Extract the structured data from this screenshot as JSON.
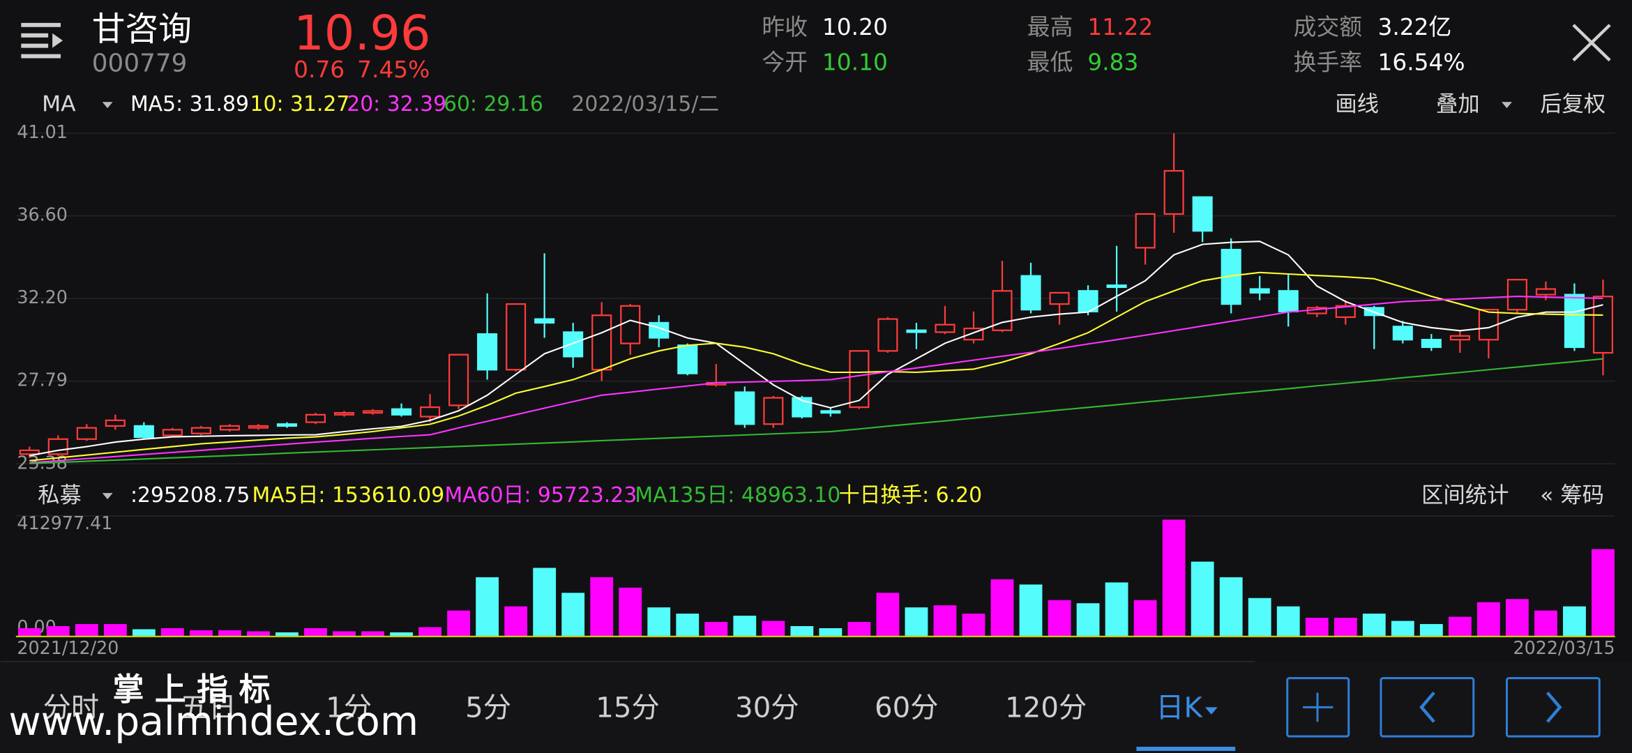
{
  "header": {
    "name": "甘咨询",
    "code": "000779",
    "price": "10.96",
    "change": "0.76",
    "change_pct": "7.45%"
  },
  "quote": [
    {
      "label": "昨收",
      "value": "10.20"
    },
    {
      "label": "今开",
      "value": "10.10"
    },
    {
      "label": "最高",
      "value": "11.22"
    },
    {
      "label": "最低",
      "value": "9.83"
    },
    {
      "label": "成交额",
      "value": "3.22亿"
    },
    {
      "label": "换手率",
      "value": "16.54%"
    }
  ],
  "price_bar": {
    "indicator": "MA",
    "legend": [
      "MA5: 31.89",
      "10: 31.27",
      "20: 32.39",
      "60: 29.16"
    ],
    "date": "2022/03/15/二",
    "tools": [
      "画线",
      "叠加",
      "后复权"
    ]
  },
  "volume_bar": {
    "indicator": "私募",
    "legend": [
      ":295208.75",
      "MA5日: 153610.09",
      "MA60日: 95723.23",
      "MA135日: 48963.10",
      "十日换手: 6.20"
    ],
    "tools": [
      "区间统计",
      "« 筹码"
    ]
  },
  "dates": [
    "2021/12/20",
    "2022/03/15"
  ],
  "tabs": [
    "分时",
    "五日",
    "1分",
    "5分",
    "15分",
    "30分",
    "60分",
    "120分",
    "日K"
  ],
  "watermark": [
    "掌 上 指 标",
    "www.palmindex.com"
  ],
  "chart_data": [
    {
      "type": "candlestick",
      "up_color": "#ff3b3b",
      "down_color": "#54fcfc",
      "ylim": [
        23.38,
        41.01
      ],
      "yticks": [
        41.01,
        {
          "value": 36.6,
          "label": "36.60"
        },
        {
          "value": 32.2,
          "label": "32.20"
        },
        27.79,
        23.38
      ],
      "grid": true,
      "open": [
        23.9,
        23.9,
        24.7,
        25.4,
        25.4,
        24.9,
        25.0,
        25.2,
        25.3,
        25.5,
        25.6,
        26.0,
        26.1,
        26.3,
        25.9,
        26.5,
        30.3,
        28.4,
        31.1,
        30.4,
        28.4,
        29.8,
        30.9,
        29.7,
        27.6,
        27.2,
        25.5,
        26.9,
        26.2,
        26.4,
        29.4,
        30.5,
        30.4,
        30.0,
        30.5,
        33.4,
        31.9,
        32.6,
        32.9,
        34.9,
        36.7,
        37.6,
        34.8,
        32.7,
        32.6,
        31.4,
        31.2,
        31.7,
        30.7,
        30.0,
        30.0,
        30.0,
        31.6,
        32.4,
        32.4,
        29.3
      ],
      "high": [
        24.3,
        24.9,
        25.5,
        26.0,
        25.6,
        25.3,
        25.4,
        25.5,
        25.5,
        25.6,
        26.1,
        26.2,
        26.3,
        26.6,
        27.1,
        29.2,
        32.47,
        31.9,
        34.6,
        30.9,
        32.0,
        31.9,
        31.3,
        29.8,
        28.7,
        27.5,
        27.0,
        27.0,
        26.4,
        29.4,
        31.2,
        30.9,
        31.8,
        31.5,
        34.2,
        34.1,
        32.5,
        32.9,
        35.0,
        36.7,
        41.0,
        37.6,
        35.4,
        33.4,
        33.5,
        31.8,
        32.1,
        31.8,
        31.0,
        30.3,
        30.5,
        31.6,
        33.2,
        33.1,
        33.0,
        33.2
      ],
      "low": [
        23.7,
        23.8,
        24.6,
        25.2,
        24.7,
        24.8,
        24.9,
        25.1,
        25.2,
        25.3,
        25.5,
        25.9,
        26.0,
        25.9,
        25.6,
        26.3,
        27.87,
        28.3,
        30.1,
        28.5,
        27.8,
        29.2,
        29.6,
        28.1,
        27.5,
        25.3,
        25.3,
        25.8,
        25.9,
        26.3,
        29.3,
        29.5,
        30.3,
        29.8,
        30.4,
        31.4,
        30.8,
        31.3,
        31.5,
        34.0,
        35.7,
        35.2,
        31.4,
        32.1,
        30.7,
        31.2,
        30.8,
        29.5,
        29.8,
        29.4,
        29.3,
        29.0,
        31.4,
        32.1,
        29.4,
        28.1
      ],
      "close": [
        24.1,
        24.7,
        25.3,
        25.7,
        24.8,
        25.2,
        25.3,
        25.4,
        25.4,
        25.4,
        26.0,
        26.1,
        26.2,
        26.0,
        26.4,
        29.2,
        28.4,
        31.9,
        30.9,
        29.1,
        31.3,
        31.8,
        30.1,
        28.2,
        27.7,
        25.5,
        26.9,
        25.9,
        26.1,
        29.4,
        31.1,
        30.4,
        30.8,
        30.6,
        32.6,
        31.6,
        32.5,
        31.5,
        32.8,
        36.7,
        39.0,
        35.8,
        31.9,
        32.5,
        31.5,
        31.7,
        31.8,
        31.3,
        30.0,
        29.6,
        30.2,
        31.6,
        33.2,
        32.7,
        29.6,
        32.3
      ],
      "lines": [
        {
          "color": "#ffffff",
          "values": [
            23.82,
            24.1,
            24.3,
            24.54,
            24.7,
            24.82,
            24.85,
            24.88,
            24.9,
            24.92,
            24.93,
            25.1,
            25.25,
            25.38,
            25.7,
            26.21,
            27.04,
            28.15,
            29.25,
            29.81,
            30.37,
            31.03,
            30.64,
            30.09,
            29.81,
            28.7,
            27.59,
            26.76,
            26.37,
            26.76,
            28.15,
            28.98,
            29.81,
            30.37,
            30.92,
            31.2,
            31.36,
            31.47,
            32.31,
            33.14,
            34.52,
            35.08,
            35.19,
            35.24,
            34.52,
            32.86,
            32.03,
            31.47,
            30.92,
            30.64,
            30.48,
            30.64,
            31.2,
            31.47,
            31.47,
            31.86
          ]
        },
        {
          "color": "#ffff33",
          "values": [
            23.55,
            23.7,
            23.85,
            24.0,
            24.15,
            24.3,
            24.45,
            24.55,
            24.65,
            24.75,
            24.82,
            24.95,
            25.1,
            25.3,
            25.49,
            25.93,
            26.5,
            27.15,
            27.5,
            27.87,
            28.4,
            28.98,
            29.4,
            29.7,
            29.81,
            29.6,
            29.25,
            28.7,
            28.26,
            28.26,
            28.3,
            28.26,
            28.35,
            28.43,
            28.8,
            29.25,
            29.8,
            30.37,
            31.2,
            32.03,
            32.6,
            33.14,
            33.4,
            33.58,
            33.5,
            33.42,
            33.35,
            33.25,
            32.8,
            32.31,
            31.9,
            31.47,
            31.4,
            31.36,
            31.33,
            31.31
          ]
        },
        {
          "color": "#ff33ff",
          "values": [
            23.44,
            23.55,
            23.66,
            23.77,
            23.88,
            23.99,
            24.1,
            24.21,
            24.32,
            24.43,
            24.54,
            24.64,
            24.74,
            24.84,
            24.93,
            25.3,
            25.65,
            26.0,
            26.35,
            26.7,
            27.04,
            27.2,
            27.37,
            27.53,
            27.7,
            27.74,
            27.78,
            27.82,
            27.87,
            28.08,
            28.29,
            28.49,
            28.7,
            28.91,
            29.12,
            29.32,
            29.53,
            29.77,
            30.0,
            30.24,
            30.48,
            30.73,
            30.98,
            31.22,
            31.47,
            31.61,
            31.75,
            31.89,
            32.03,
            32.1,
            32.17,
            32.24,
            32.31,
            32.27,
            32.24,
            32.2
          ]
        },
        {
          "color": "#33bb33",
          "values": [
            23.4,
            23.46,
            23.52,
            23.58,
            23.64,
            23.7,
            23.76,
            23.82,
            23.88,
            23.95,
            24.01,
            24.07,
            24.13,
            24.19,
            24.25,
            24.31,
            24.37,
            24.43,
            24.49,
            24.55,
            24.62,
            24.68,
            24.74,
            24.8,
            24.86,
            24.92,
            24.98,
            25.04,
            25.1,
            25.24,
            25.39,
            25.53,
            25.67,
            25.82,
            25.96,
            26.1,
            26.25,
            26.39,
            26.53,
            26.68,
            26.82,
            26.96,
            27.11,
            27.25,
            27.39,
            27.54,
            27.68,
            27.82,
            27.97,
            28.11,
            28.25,
            28.4,
            28.54,
            28.69,
            28.83,
            28.98
          ]
        }
      ]
    },
    {
      "type": "bar",
      "up_color": "#ff00ff",
      "down_color": "#54fcfc",
      "ylim": [
        0,
        412977.41
      ],
      "yticks": [
        412977.41,
        {
          "value": 0,
          "label": "0.00"
        }
      ],
      "values": [
        28500,
        35600,
        42700,
        42700,
        24900,
        28500,
        21400,
        21400,
        17800,
        14200,
        28500,
        17800,
        17800,
        14200,
        32000,
        89000,
        202900,
        103200,
        235000,
        149500,
        202900,
        167300,
        99700,
        78300,
        49800,
        71200,
        53400,
        35600,
        28500,
        49800,
        149500,
        99700,
        106800,
        78300,
        195800,
        178000,
        124600,
        113900,
        185100,
        124600,
        400000,
        256300,
        202900,
        131700,
        103200,
        64100,
        64100,
        78300,
        53400,
        42700,
        67600,
        117500,
        128200,
        89000,
        103200,
        299100
      ]
    }
  ]
}
